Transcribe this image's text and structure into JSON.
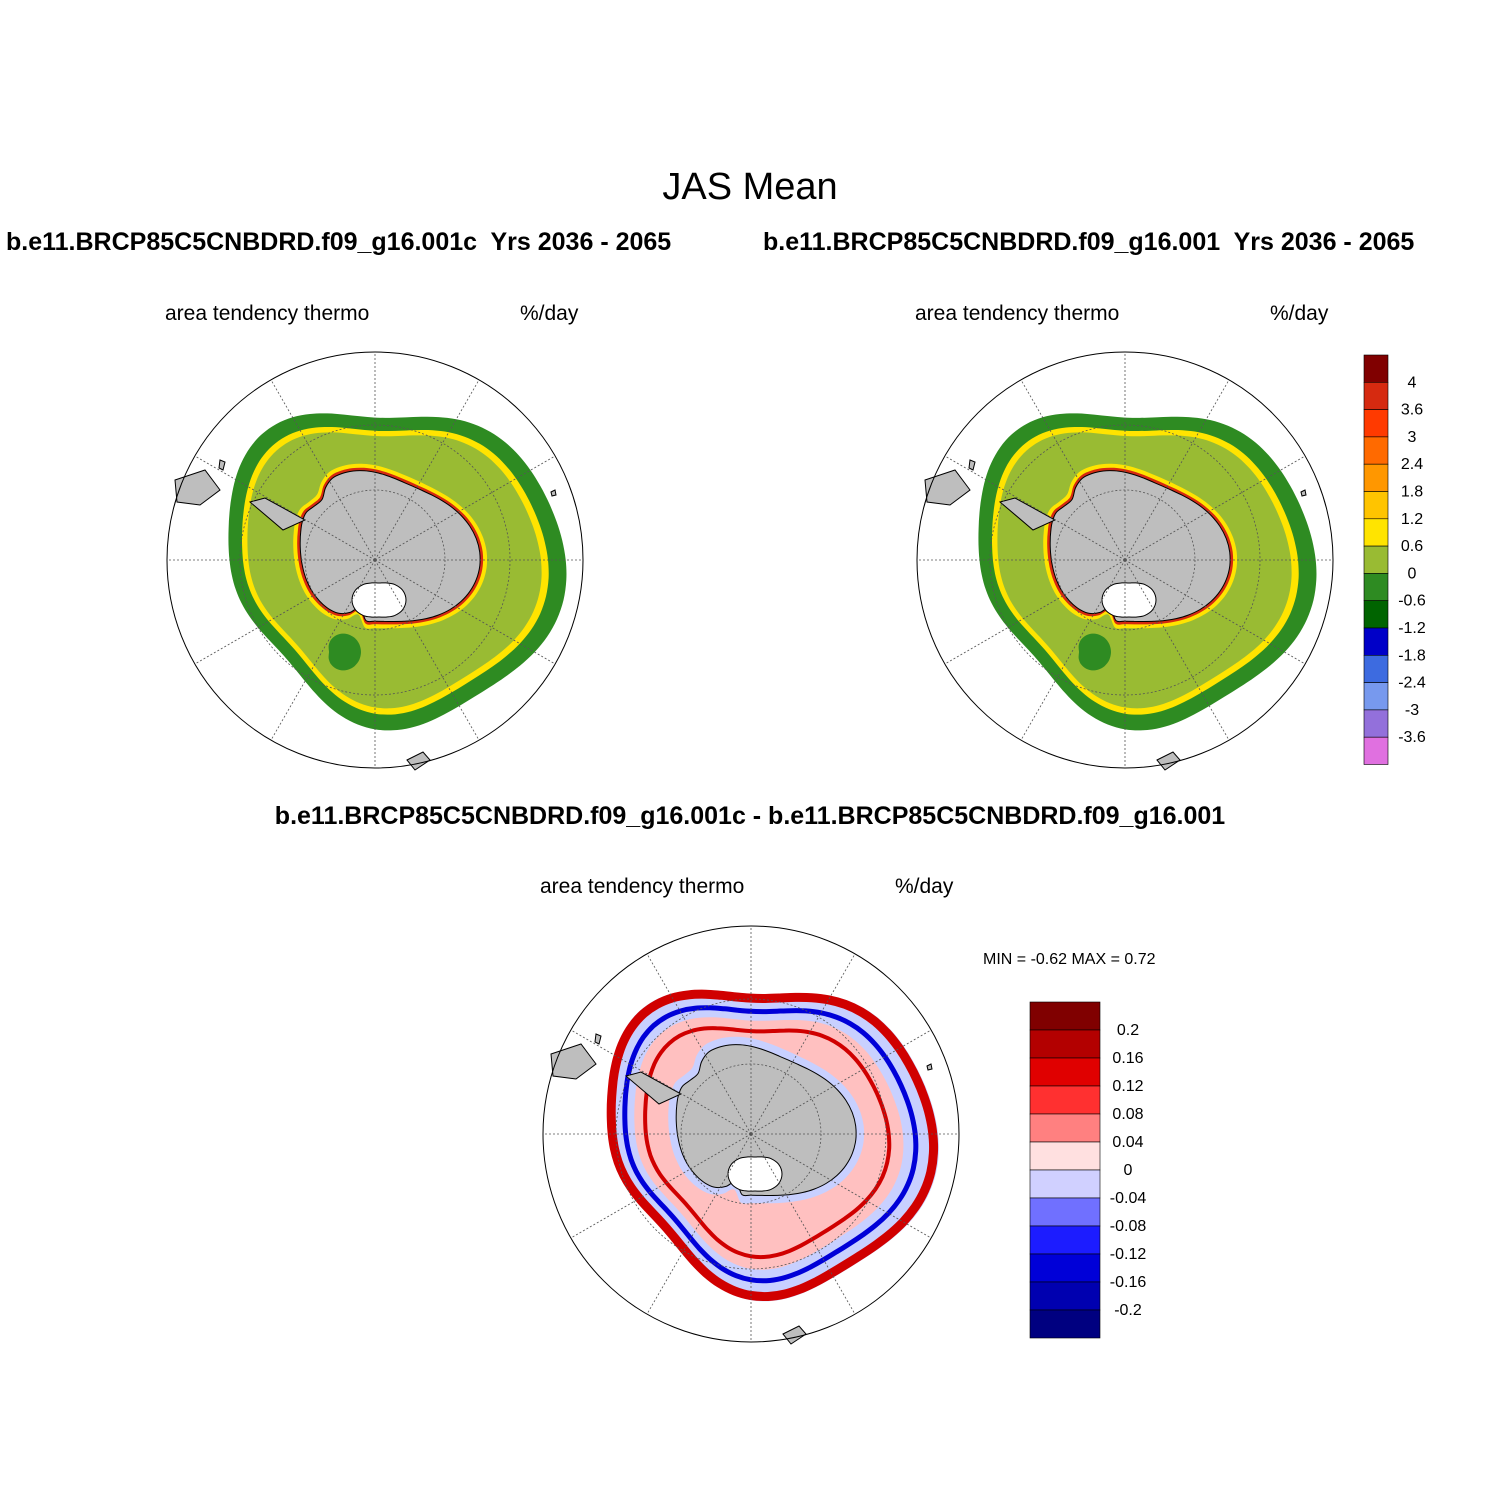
{
  "title": "JAS Mean",
  "panels": [
    {
      "case": "b.e11.BRCP85C5CNBDRD.f09_g16.001c",
      "years": "Yrs 2036 - 2065",
      "variable": "area tendency thermo",
      "units": "%/day"
    },
    {
      "case": "b.e11.BRCP85C5CNBDRD.f09_g16.001",
      "years": "Yrs 2036 - 2065",
      "variable": "area tendency thermo",
      "units": "%/day"
    }
  ],
  "difference": {
    "title": "b.e11.BRCP85C5CNBDRD.f09_g16.001c - b.e11.BRCP85C5CNBDRD.f09_g16.001",
    "variable": "area tendency thermo",
    "units": "%/day",
    "minmax": "MIN =  -0.62 MAX =   0.72"
  },
  "colorbar_main": {
    "labels": [
      "4",
      "3.6",
      "3",
      "2.4",
      "1.8",
      "1.2",
      "0.6",
      "0",
      "-0.6",
      "-1.2",
      "-1.8",
      "-2.4",
      "-3",
      "-3.6"
    ],
    "colors": [
      "#800000",
      "#d62a10",
      "#ff3a00",
      "#ff6a00",
      "#ff9700",
      "#ffc400",
      "#ffe400",
      "#99bb33",
      "#2e8b22",
      "#006400",
      "#0000c8",
      "#3d6be0",
      "#7799ee",
      "#9370db",
      "#e070e0"
    ]
  },
  "colorbar_diff": {
    "labels": [
      "0.2",
      "0.16",
      "0.12",
      "0.08",
      "0.04",
      "0",
      "-0.04",
      "-0.08",
      "-0.12",
      "-0.16",
      "-0.2"
    ],
    "colors": [
      "#800000",
      "#b30000",
      "#e00000",
      "#ff3030",
      "#ff8080",
      "#ffe0e0",
      "#d0d0ff",
      "#7070ff",
      "#1c1cff",
      "#0000d8",
      "#0000b0",
      "#000080"
    ]
  },
  "map_colors": {
    "land": "#bebebe",
    "green_dark": "#2e8b22",
    "green_light": "#99bb33",
    "yellow": "#ffe400",
    "red": "#d62a10",
    "diff_red": "#d00000",
    "diff_blue": "#0000d8",
    "diff_pink": "#ffc0c0",
    "diff_lightblue": "#c8d0ff"
  }
}
